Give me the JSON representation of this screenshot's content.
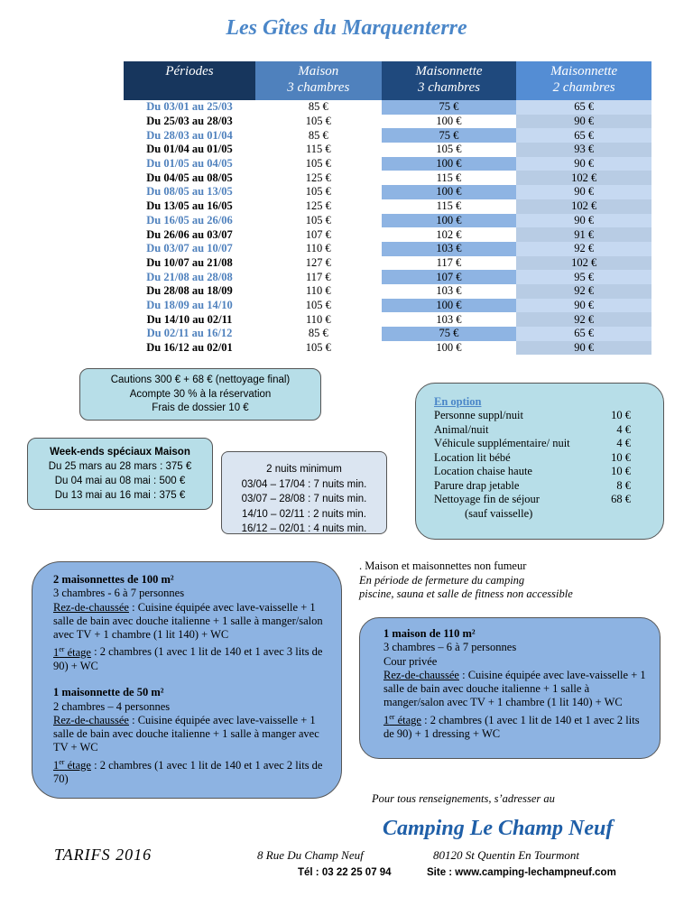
{
  "title": "Les Gîtes du Marquenterre",
  "table": {
    "headers": [
      {
        "name": "Périodes"
      },
      {
        "name": "Maison",
        "sub": "3 chambres"
      },
      {
        "name": "Maisonnette",
        "sub": "3 chambres"
      },
      {
        "name": "Maisonnette",
        "sub": "2 chambres"
      }
    ],
    "rows": [
      [
        "Du 03/01 au 25/03",
        "85 €",
        "75 €",
        "65 €"
      ],
      [
        "Du 25/03 au 28/03",
        "105 €",
        "100 €",
        "90 €"
      ],
      [
        "Du 28/03 au 01/04",
        "85 €",
        "75 €",
        "65 €"
      ],
      [
        "Du 01/04 au 01/05",
        "115 €",
        "105 €",
        "93 €"
      ],
      [
        "Du 01/05 au 04/05",
        "105 €",
        "100 €",
        "90 €"
      ],
      [
        "Du 04/05 au 08/05",
        "125 €",
        "115 €",
        "102 €"
      ],
      [
        "Du 08/05 au 13/05",
        "105 €",
        "100 €",
        "90 €"
      ],
      [
        "Du 13/05 au 16/05",
        "125 €",
        "115 €",
        "102 €"
      ],
      [
        "Du 16/05 au 26/06",
        "105 €",
        "100 €",
        "90 €"
      ],
      [
        "Du 26/06 au 03/07",
        "107 €",
        "102 €",
        "91 €"
      ],
      [
        "Du 03/07 au 10/07",
        "110 €",
        "103 €",
        "92 €"
      ],
      [
        "Du 10/07 au 21/08",
        "127 €",
        "117 €",
        "102 €"
      ],
      [
        "Du 21/08 au 28/08",
        "117 €",
        "107 €",
        "95 €"
      ],
      [
        "Du 28/08 au 18/09",
        "110 €",
        "103 €",
        "92 €"
      ],
      [
        "Du 18/09 au 14/10",
        "105 €",
        "100 €",
        "90 €"
      ],
      [
        "Du 14/10 au 02/11",
        "110 €",
        "103 €",
        "92 €"
      ],
      [
        "Du 02/11 au 16/12",
        "85 €",
        "75 €",
        "65 €"
      ],
      [
        "Du 16/12 au 02/01",
        "105 €",
        "100 €",
        "90 €"
      ]
    ]
  },
  "cautions": [
    "Cautions 300 € + 68 € (nettoyage final)",
    "Acompte 30 % à la réservation",
    "Frais de dossier 10 €"
  ],
  "weekends": {
    "title": "Week-ends spéciaux Maison",
    "lines": [
      "Du 25 mars au 28 mars : 375 €",
      "Du 04 mai au 08 mai : 500 €",
      "Du 13 mai au 16 mai : 375 €"
    ]
  },
  "nuits": [
    "2 nuits minimum",
    "03/04 – 17/04 : 7 nuits min.",
    "03/07 – 28/08 : 7 nuits min.",
    "14/10 – 02/11 : 2 nuits min.",
    "16/12 – 02/01 : 4 nuits min."
  ],
  "options": {
    "title": "En option",
    "items": [
      {
        "label": "Personne suppl/nuit",
        "price": "10 €"
      },
      {
        "label": "Animal/nuit",
        "price": "4 €"
      },
      {
        "label": "Véhicule supplémentaire/ nuit",
        "price": "4 €"
      },
      {
        "label": "Location lit bébé",
        "price": "10 €"
      },
      {
        "label": "Location chaise haute",
        "price": "10 €"
      },
      {
        "label": "Parure drap jetable",
        "price": "8 €"
      },
      {
        "label": "Nettoyage fin de séjour",
        "price": "68 €"
      }
    ],
    "note": "(sauf vaisselle)"
  },
  "maisonnettes": [
    {
      "title": "2 maisonnettes de 100 m²",
      "capacity": "3 chambres - 6 à 7 personnes",
      "rdc_label": "Rez-de-chaussée",
      "rdc_text": " : Cuisine équipée avec lave-vaisselle + 1 salle de bain avec douche italienne + 1 salle à manger/salon avec TV + 1 chambre (1 lit 140) + WC",
      "etage_num": "1",
      "etage_sup": "er",
      "etage_label": " étage",
      "etage_text": " : 2 chambres (1 avec 1 lit de 140 et 1 avec 3 lits de 90) + WC"
    },
    {
      "title": "1 maisonnette de 50 m²",
      "capacity": "2 chambres – 4 personnes",
      "rdc_label": "Rez-de-chaussée",
      "rdc_text": " : Cuisine équipée avec lave-vaisselle + 1 salle de bain avec douche italienne + 1 salle à manger avec TV + WC",
      "etage_num": "1",
      "etage_sup": "er",
      "etage_label": " étage",
      "etage_text": " : 2 chambres (1 avec 1 lit de 140 et 1 avec 2 lits de 70)"
    }
  ],
  "notes": [
    ". Maison et maisonnettes non fumeur",
    "En période de fermeture du camping",
    "piscine, sauna et salle de fitness non accessible"
  ],
  "maison": {
    "title": "1 maison de 110 m²",
    "capacity": "3 chambres – 6 à 7 personnes",
    "extra": "Cour privée",
    "rdc_label": "Rez-de-chaussée",
    "rdc_text": " : Cuisine équipée avec lave-vaisselle + 1 salle de bain avec douche italienne + 1 salle à manger/salon avec TV + 1 chambre (1 lit 140) + WC",
    "etage_num": "1",
    "etage_sup": "er",
    "etage_label": " étage",
    "etage_text": " : 2 chambres (1 avec 1 lit de 140 et 1 avec 2 lits de 90) + 1 dressing + WC"
  },
  "contact_intro": "Pour tous renseignements, s’adresser au",
  "camping_name": "Camping Le Champ Neuf",
  "tarifs": "TARIFS 2016",
  "address": "8 Rue Du Champ Neuf",
  "city": "80120 St Quentin En Tourmont",
  "phone": "Tél : 03 22 25 07 94",
  "site": "Site : www.camping-lechampneuf.com"
}
